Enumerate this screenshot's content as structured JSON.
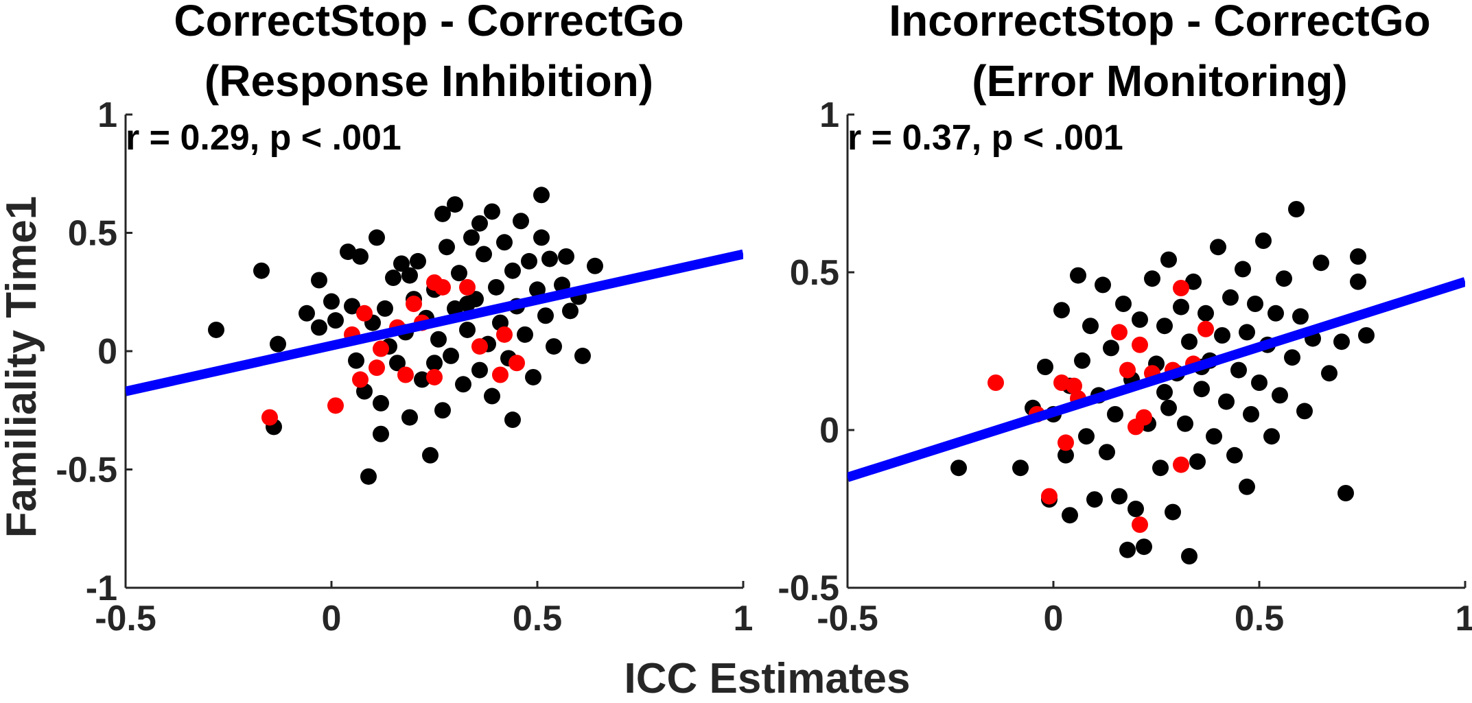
{
  "chart_data": {
    "shared": {
      "xlabel": "ICC Estimates",
      "ylabel": "Familiality Time1"
    },
    "panels": [
      {
        "type": "scatter",
        "title_line1": "CorrectStop - CorrectGo",
        "title_line2": "(Response Inhibition)",
        "annotation": "r = 0.29, p < .001",
        "xlim": [
          -0.5,
          1
        ],
        "ylim": [
          -1,
          1
        ],
        "xticks": [
          -0.5,
          0,
          0.5,
          1
        ],
        "xtick_labels": [
          "-0.5",
          "0",
          "0.5",
          "1"
        ],
        "yticks": [
          -1,
          -0.5,
          0,
          0.5,
          1
        ],
        "ytick_labels": [
          "-1",
          "-0.5",
          "0",
          "0.5",
          "1"
        ],
        "fit_line": {
          "x": [
            -0.5,
            1
          ],
          "y": [
            -0.17,
            0.41
          ],
          "color": "#0000ff"
        },
        "series": [
          {
            "name": "black points",
            "color": "#000000",
            "points": [
              [
                -0.28,
                0.09
              ],
              [
                -0.17,
                0.34
              ],
              [
                -0.14,
                -0.32
              ],
              [
                -0.13,
                0.03
              ],
              [
                -0.06,
                0.16
              ],
              [
                -0.03,
                0.3
              ],
              [
                -0.03,
                0.1
              ],
              [
                0.0,
                0.21
              ],
              [
                0.01,
                0.13
              ],
              [
                0.04,
                0.42
              ],
              [
                0.05,
                0.19
              ],
              [
                0.06,
                -0.04
              ],
              [
                0.07,
                0.4
              ],
              [
                0.08,
                -0.17
              ],
              [
                0.09,
                -0.53
              ],
              [
                0.1,
                0.12
              ],
              [
                0.11,
                0.48
              ],
              [
                0.12,
                -0.22
              ],
              [
                0.12,
                -0.35
              ],
              [
                0.13,
                0.18
              ],
              [
                0.14,
                0.02
              ],
              [
                0.15,
                0.31
              ],
              [
                0.16,
                -0.05
              ],
              [
                0.17,
                0.37
              ],
              [
                0.18,
                0.08
              ],
              [
                0.19,
                -0.28
              ],
              [
                0.2,
                0.22
              ],
              [
                0.21,
                0.38
              ],
              [
                0.22,
                -0.12
              ],
              [
                0.23,
                0.14
              ],
              [
                0.24,
                -0.44
              ],
              [
                0.25,
                0.26
              ],
              [
                0.26,
                0.05
              ],
              [
                0.27,
                0.58
              ],
              [
                0.27,
                -0.25
              ],
              [
                0.28,
                0.44
              ],
              [
                0.29,
                -0.02
              ],
              [
                0.3,
                0.62
              ],
              [
                0.3,
                0.18
              ],
              [
                0.31,
                0.33
              ],
              [
                0.32,
                -0.14
              ],
              [
                0.33,
                0.09
              ],
              [
                0.34,
                0.48
              ],
              [
                0.35,
                0.22
              ],
              [
                0.36,
                -0.08
              ],
              [
                0.37,
                0.41
              ],
              [
                0.38,
                0.03
              ],
              [
                0.39,
                0.59
              ],
              [
                0.39,
                -0.19
              ],
              [
                0.4,
                0.27
              ],
              [
                0.41,
                0.12
              ],
              [
                0.42,
                0.46
              ],
              [
                0.43,
                -0.03
              ],
              [
                0.44,
                0.34
              ],
              [
                0.44,
                -0.29
              ],
              [
                0.45,
                0.19
              ],
              [
                0.46,
                0.55
              ],
              [
                0.47,
                0.07
              ],
              [
                0.48,
                0.38
              ],
              [
                0.49,
                -0.11
              ],
              [
                0.5,
                0.26
              ],
              [
                0.51,
                0.48
              ],
              [
                0.52,
                0.15
              ],
              [
                0.53,
                0.39
              ],
              [
                0.54,
                0.02
              ],
              [
                0.56,
                0.28
              ],
              [
                0.57,
                0.4
              ],
              [
                0.58,
                0.17
              ],
              [
                0.6,
                0.23
              ],
              [
                0.61,
                -0.02
              ],
              [
                0.64,
                0.36
              ],
              [
                0.51,
                0.66
              ],
              [
                0.36,
                0.54
              ],
              [
                0.19,
                0.32
              ],
              [
                0.33,
                0.2
              ],
              [
                0.25,
                -0.05
              ]
            ]
          },
          {
            "name": "red points",
            "color": "#ff0000",
            "points": [
              [
                -0.15,
                -0.28
              ],
              [
                0.01,
                -0.23
              ],
              [
                0.05,
                0.07
              ],
              [
                0.07,
                -0.12
              ],
              [
                0.08,
                0.16
              ],
              [
                0.11,
                -0.07
              ],
              [
                0.12,
                0.01
              ],
              [
                0.16,
                0.1
              ],
              [
                0.18,
                -0.1
              ],
              [
                0.2,
                0.2
              ],
              [
                0.22,
                0.12
              ],
              [
                0.25,
                0.29
              ],
              [
                0.25,
                -0.11
              ],
              [
                0.27,
                0.27
              ],
              [
                0.33,
                0.27
              ],
              [
                0.36,
                0.02
              ],
              [
                0.41,
                -0.1
              ],
              [
                0.42,
                0.07
              ],
              [
                0.45,
                -0.05
              ]
            ]
          }
        ]
      },
      {
        "type": "scatter",
        "title_line1": "IncorrectStop - CorrectGo",
        "title_line2": "(Error Monitoring)",
        "annotation": "r = 0.37, p < .001",
        "xlim": [
          -0.5,
          1
        ],
        "ylim": [
          -0.5,
          1
        ],
        "xticks": [
          -0.5,
          0,
          0.5,
          1
        ],
        "xtick_labels": [
          "-0.5",
          "0",
          "0.5",
          "1"
        ],
        "yticks": [
          -0.5,
          0,
          0.5,
          1
        ],
        "ytick_labels": [
          "-0.5",
          "0",
          "0.5",
          "1"
        ],
        "fit_line": {
          "x": [
            -0.5,
            1
          ],
          "y": [
            -0.15,
            0.47
          ],
          "color": "#0000ff"
        },
        "series": [
          {
            "name": "black points",
            "color": "#000000",
            "points": [
              [
                -0.23,
                -0.12
              ],
              [
                -0.08,
                -0.12
              ],
              [
                -0.05,
                0.07
              ],
              [
                -0.02,
                0.2
              ],
              [
                -0.01,
                -0.22
              ],
              [
                0.0,
                0.05
              ],
              [
                0.02,
                0.38
              ],
              [
                0.03,
                -0.08
              ],
              [
                0.04,
                0.14
              ],
              [
                0.04,
                -0.27
              ],
              [
                0.06,
                0.49
              ],
              [
                0.07,
                0.22
              ],
              [
                0.08,
                -0.02
              ],
              [
                0.09,
                0.33
              ],
              [
                0.1,
                -0.22
              ],
              [
                0.11,
                0.11
              ],
              [
                0.12,
                0.46
              ],
              [
                0.13,
                -0.07
              ],
              [
                0.14,
                0.26
              ],
              [
                0.15,
                0.05
              ],
              [
                0.16,
                -0.21
              ],
              [
                0.17,
                0.4
              ],
              [
                0.18,
                -0.38
              ],
              [
                0.19,
                0.16
              ],
              [
                0.2,
                -0.25
              ],
              [
                0.21,
                0.35
              ],
              [
                0.22,
                -0.37
              ],
              [
                0.23,
                0.02
              ],
              [
                0.24,
                0.48
              ],
              [
                0.25,
                0.21
              ],
              [
                0.26,
                -0.12
              ],
              [
                0.27,
                0.33
              ],
              [
                0.28,
                0.07
              ],
              [
                0.28,
                0.54
              ],
              [
                0.29,
                -0.26
              ],
              [
                0.3,
                0.18
              ],
              [
                0.31,
                0.39
              ],
              [
                0.32,
                0.02
              ],
              [
                0.33,
                -0.4
              ],
              [
                0.33,
                0.28
              ],
              [
                0.34,
                0.47
              ],
              [
                0.35,
                -0.1
              ],
              [
                0.36,
                0.13
              ],
              [
                0.37,
                0.37
              ],
              [
                0.38,
                0.22
              ],
              [
                0.39,
                -0.02
              ],
              [
                0.4,
                0.58
              ],
              [
                0.41,
                0.3
              ],
              [
                0.42,
                0.09
              ],
              [
                0.43,
                0.42
              ],
              [
                0.44,
                -0.08
              ],
              [
                0.45,
                0.19
              ],
              [
                0.46,
                0.51
              ],
              [
                0.47,
                0.31
              ],
              [
                0.48,
                0.05
              ],
              [
                0.49,
                0.4
              ],
              [
                0.5,
                0.15
              ],
              [
                0.51,
                0.6
              ],
              [
                0.52,
                0.27
              ],
              [
                0.53,
                -0.02
              ],
              [
                0.54,
                0.37
              ],
              [
                0.55,
                0.11
              ],
              [
                0.56,
                0.48
              ],
              [
                0.58,
                0.23
              ],
              [
                0.59,
                0.7
              ],
              [
                0.6,
                0.36
              ],
              [
                0.61,
                0.06
              ],
              [
                0.63,
                0.29
              ],
              [
                0.65,
                0.53
              ],
              [
                0.67,
                0.18
              ],
              [
                0.7,
                0.28
              ],
              [
                0.71,
                -0.2
              ],
              [
                0.74,
                0.47
              ],
              [
                0.76,
                0.3
              ],
              [
                0.74,
                0.55
              ],
              [
                0.47,
                -0.18
              ],
              [
                0.36,
                0.2
              ],
              [
                0.27,
                0.12
              ]
            ]
          },
          {
            "name": "red points",
            "color": "#ff0000",
            "points": [
              [
                -0.14,
                0.15
              ],
              [
                -0.04,
                0.05
              ],
              [
                -0.01,
                -0.21
              ],
              [
                0.02,
                0.15
              ],
              [
                0.03,
                -0.04
              ],
              [
                0.05,
                0.14
              ],
              [
                0.06,
                0.1
              ],
              [
                0.16,
                0.31
              ],
              [
                0.18,
                0.19
              ],
              [
                0.2,
                0.01
              ],
              [
                0.21,
                -0.3
              ],
              [
                0.21,
                0.27
              ],
              [
                0.22,
                0.04
              ],
              [
                0.24,
                0.18
              ],
              [
                0.29,
                0.19
              ],
              [
                0.31,
                0.45
              ],
              [
                0.31,
                -0.11
              ],
              [
                0.34,
                0.21
              ],
              [
                0.37,
                0.32
              ]
            ]
          }
        ]
      }
    ]
  }
}
